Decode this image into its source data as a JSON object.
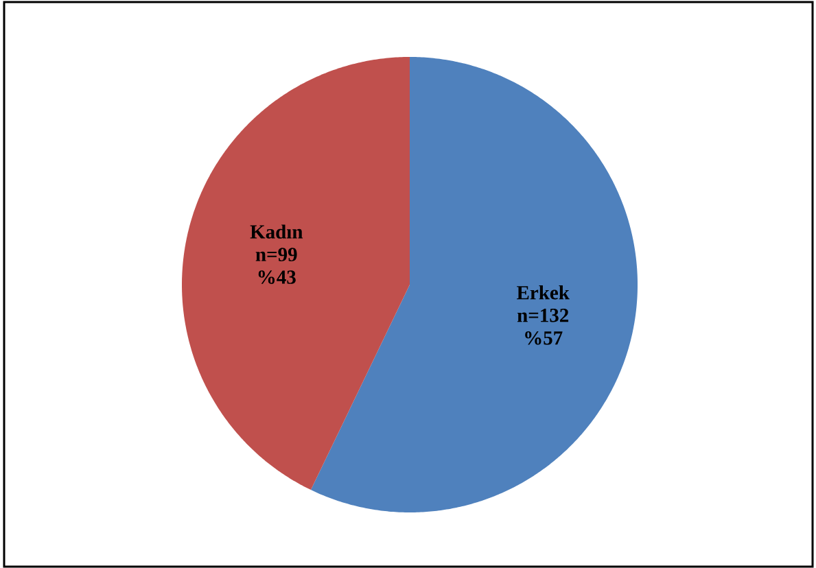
{
  "chart_data": {
    "type": "pie",
    "categories": [
      "Erkek",
      "Kadın"
    ],
    "values": [
      132,
      99
    ],
    "colors": [
      "#4f81bd",
      "#c0504d"
    ],
    "value_labels": [
      "n=132 %57",
      "n=99 %43"
    ]
  }
}
